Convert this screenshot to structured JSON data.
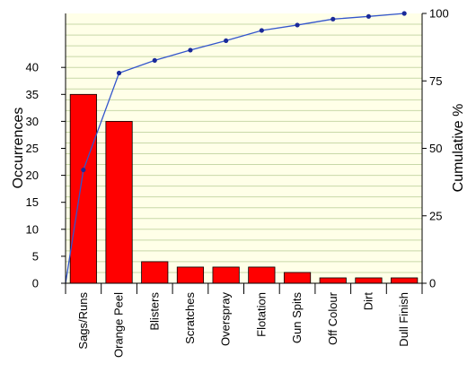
{
  "chart_data": {
    "type": "bar",
    "categories": [
      "Sags/Runs",
      "Orange Peel",
      "Blisters",
      "Scratches",
      "Overspray",
      "Flotation",
      "Gun Spits",
      "Off Colour",
      "Dirt",
      "Dull Finish"
    ],
    "series": [
      {
        "type": "bar",
        "axis": "left",
        "values": [
          35,
          30,
          4,
          3,
          3,
          3,
          2,
          1,
          1,
          1
        ]
      },
      {
        "type": "line",
        "axis": "right",
        "start_value": 0,
        "values": [
          42,
          77.9,
          82.6,
          86.4,
          89.9,
          93.7,
          95.7,
          97.9,
          98.9,
          100
        ]
      }
    ],
    "xlabel": "",
    "ylabel": "Occurrences",
    "y2label": "Cumulative %",
    "ylim": [
      0,
      50
    ],
    "y2lim": [
      0,
      100
    ],
    "y_ticks": [
      0,
      5,
      10,
      15,
      20,
      25,
      30,
      35,
      40
    ],
    "y2_ticks": [
      0,
      25,
      50,
      75,
      100
    ],
    "grid": true,
    "legend": "none",
    "colors": {
      "plot_background": "#ffffe8",
      "grid": "#c8d8a8",
      "bar_fill": "#ff0000",
      "bar_stroke": "#000000",
      "line": "#3355cc",
      "marker": "#1a2a99"
    }
  }
}
